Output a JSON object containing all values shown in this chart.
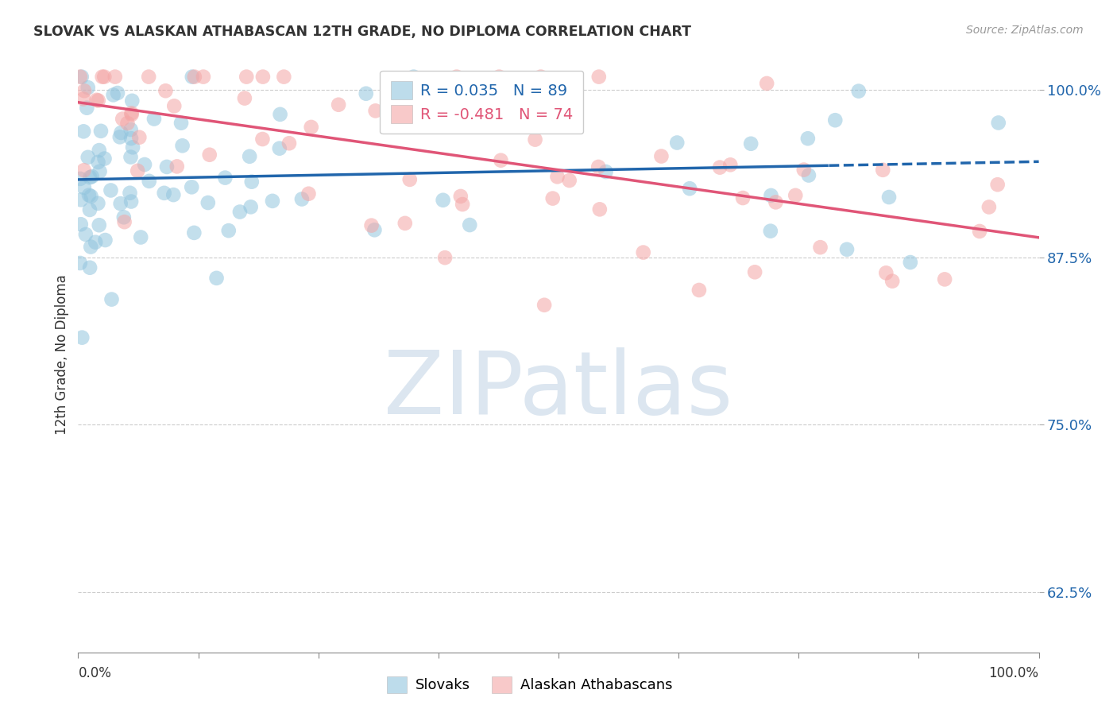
{
  "title": "SLOVAK VS ALASKAN ATHABASCAN 12TH GRADE, NO DIPLOMA CORRELATION CHART",
  "source": "Source: ZipAtlas.com",
  "ylabel": "12th Grade, No Diploma",
  "legend_slovak": "Slovaks",
  "legend_athabascan": "Alaskan Athabascans",
  "r_slovak": 0.035,
  "n_slovak": 89,
  "r_athabascan": -0.481,
  "n_athabascan": 74,
  "yticks": [
    0.625,
    0.75,
    0.875,
    1.0
  ],
  "ytick_labels": [
    "62.5%",
    "75.0%",
    "87.5%",
    "100.0%"
  ],
  "color_slovak": "#92c5de",
  "color_athabascan": "#f4a5a5",
  "trendline_slovak": "#2166ac",
  "trendline_athabascan": "#e05577",
  "xlim": [
    0.0,
    1.0
  ],
  "ylim": [
    0.58,
    1.025
  ],
  "dashed_split": 0.78,
  "background_color": "#ffffff",
  "watermark_text": "ZIPatlas",
  "watermark_color": "#dce6f0",
  "watermark_fontsize": 80
}
